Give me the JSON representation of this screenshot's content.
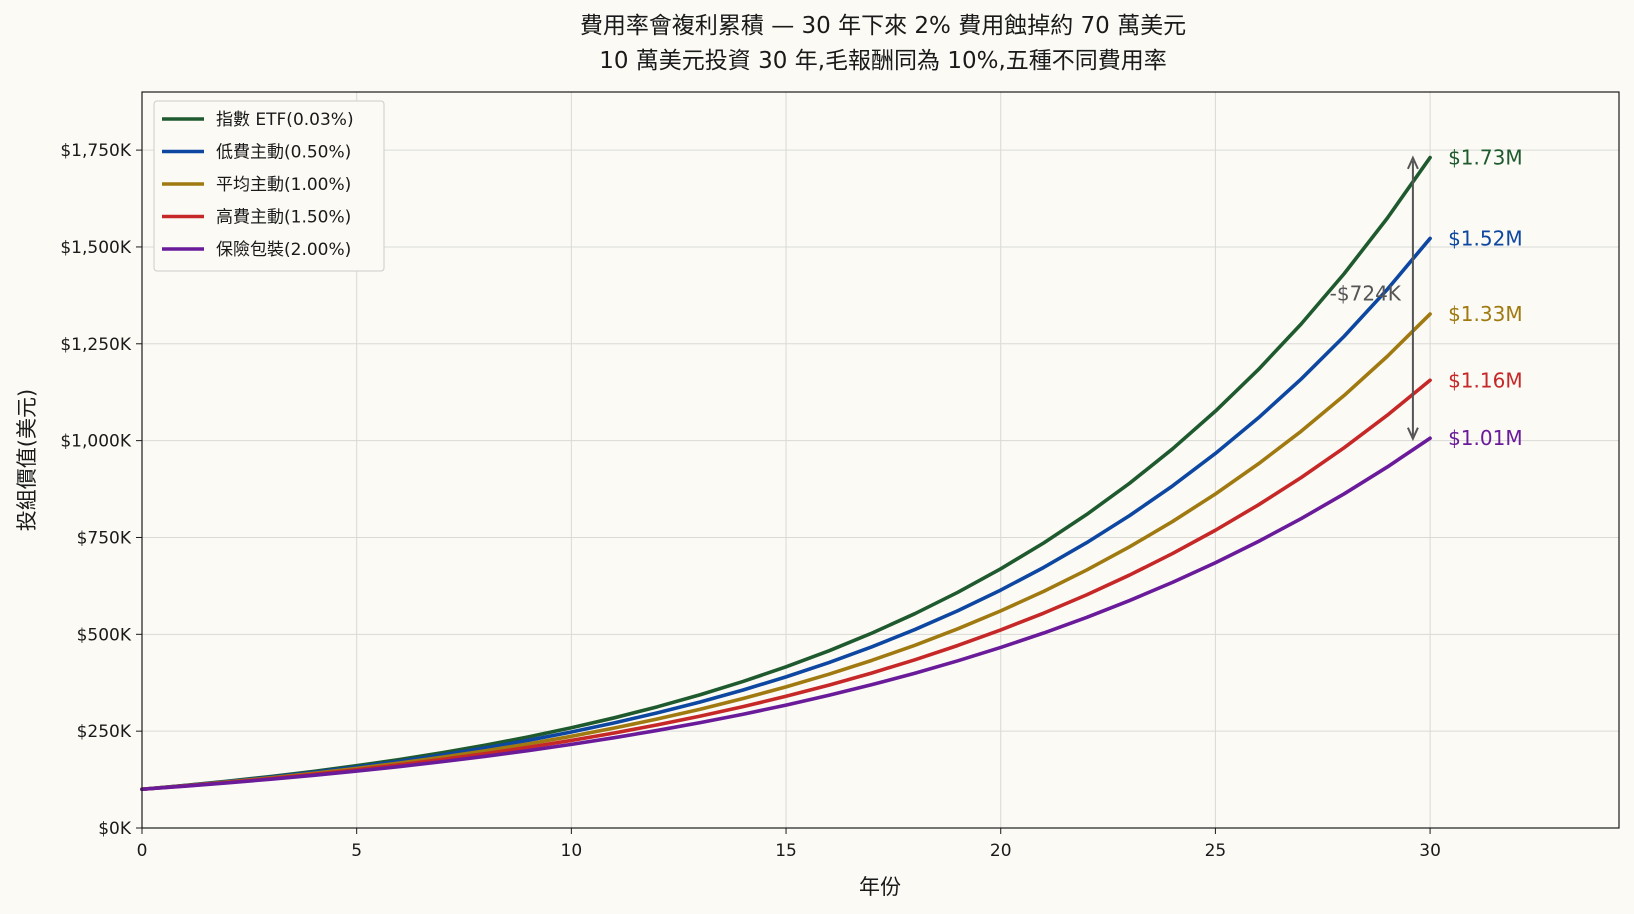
{
  "chart_data": {
    "type": "line",
    "title": "費用率會複利累積 — 30 年下來 2% 費用蝕掉約 70 萬美元",
    "subtitle": "10 萬美元投資 30 年,毛報酬同為 10%,五種不同費用率",
    "xlabel": "年份",
    "ylabel": "投組價值(美元)",
    "xlim": [
      0,
      34.4
    ],
    "ylim": [
      0,
      1900000
    ],
    "x_ticks": [
      0,
      5,
      10,
      15,
      20,
      25,
      30
    ],
    "y_ticks": [
      0,
      250000,
      500000,
      750000,
      1000000,
      1250000,
      1500000,
      1750000
    ],
    "y_tick_labels": [
      "$0K",
      "$250K",
      "$500K",
      "$750K",
      "$1,000K",
      "$1,250K",
      "$1,500K",
      "$1,750K"
    ],
    "grid": true,
    "legend_position": "top-left",
    "initial_investment": 100000,
    "gross_return": 0.1,
    "years": 30,
    "series": [
      {
        "name": "指數 ETF(0.03%)",
        "fee": 0.0003,
        "color": "#1e5a2e",
        "end_label": "$1.73M"
      },
      {
        "name": "低費主動(0.50%)",
        "fee": 0.005,
        "color": "#0d47a1",
        "end_label": "$1.52M"
      },
      {
        "name": "平均主動(1.00%)",
        "fee": 0.01,
        "color": "#a07a10",
        "end_label": "$1.33M"
      },
      {
        "name": "高費主動(1.50%)",
        "fee": 0.015,
        "color": "#c62828",
        "end_label": "$1.16M"
      },
      {
        "name": "保險包裝(2.00%)",
        "fee": 0.02,
        "color": "#6a1b9a",
        "end_label": "$1.01M"
      }
    ],
    "annotation": {
      "text": "-$724K",
      "x": 29.6,
      "from": 1730000,
      "to": 1005000
    }
  }
}
